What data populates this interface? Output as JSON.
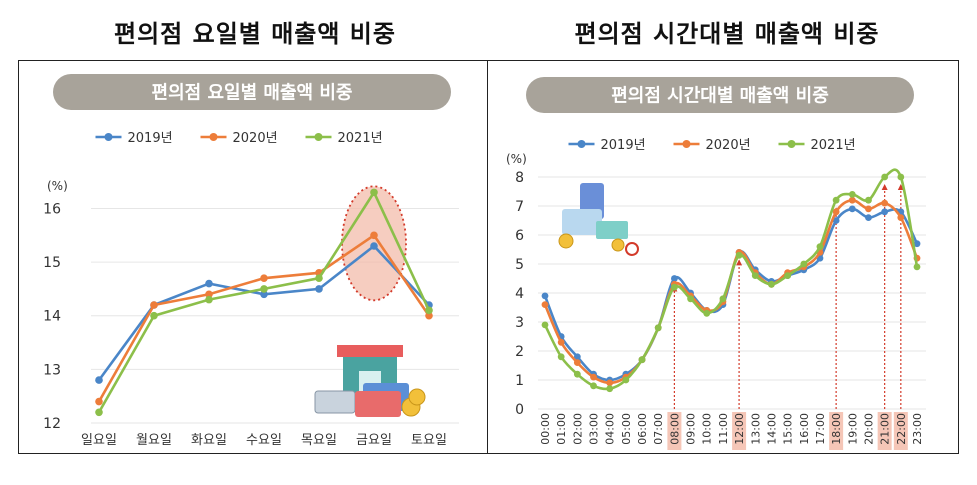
{
  "captions": {
    "left": "편의점 요일별 매출액 비중",
    "right": "편의점 시간대별 매출액 비중"
  },
  "colors": {
    "s2019": "#4a86c8",
    "s2020": "#ed7d3a",
    "s2021": "#8cbf4a",
    "pill": "#a8a39a",
    "highlight": "#f2b8a5",
    "highlight_border": "#d33a2a",
    "grid": "#e6e6e6"
  },
  "chart_data": [
    {
      "type": "line",
      "title": "편의점 요일별 매출액 비중",
      "ylabel": "(%)",
      "categories": [
        "일요일",
        "월요일",
        "화요일",
        "수요일",
        "목요일",
        "금요일",
        "토요일"
      ],
      "yticks": [
        12,
        13,
        14,
        15,
        16
      ],
      "ylim": [
        12,
        16.4
      ],
      "grid": true,
      "legend": "top-center",
      "series": [
        {
          "name": "2019년",
          "values": [
            12.8,
            14.2,
            14.6,
            14.4,
            14.5,
            15.3,
            14.2
          ]
        },
        {
          "name": "2020년",
          "values": [
            12.4,
            14.2,
            14.4,
            14.7,
            14.8,
            15.5,
            14.0
          ]
        },
        {
          "name": "2021년",
          "values": [
            12.2,
            14.0,
            14.3,
            14.5,
            14.7,
            16.3,
            14.1
          ]
        }
      ],
      "highlight_category": "금요일"
    },
    {
      "type": "line",
      "title": "편의점 시간대별 매출액 비중",
      "ylabel": "(%)",
      "categories": [
        "00:00",
        "01:00",
        "02:00",
        "03:00",
        "04:00",
        "05:00",
        "06:00",
        "07:00",
        "08:00",
        "09:00",
        "10:00",
        "11:00",
        "12:00",
        "13:00",
        "14:00",
        "15:00",
        "16:00",
        "17:00",
        "18:00",
        "19:00",
        "20:00",
        "21:00",
        "22:00",
        "23:00"
      ],
      "yticks": [
        0,
        1,
        2,
        3,
        4,
        5,
        6,
        7,
        8
      ],
      "ylim": [
        0,
        8
      ],
      "grid": true,
      "legend": "top-center",
      "series": [
        {
          "name": "2019년",
          "values": [
            3.9,
            2.5,
            1.8,
            1.2,
            1.0,
            1.2,
            1.7,
            2.8,
            4.5,
            4.0,
            3.4,
            3.6,
            5.4,
            4.8,
            4.4,
            4.6,
            4.8,
            5.2,
            6.5,
            6.9,
            6.6,
            6.8,
            6.8,
            5.7
          ]
        },
        {
          "name": "2020년",
          "values": [
            3.6,
            2.3,
            1.6,
            1.1,
            0.9,
            1.1,
            1.7,
            2.8,
            4.3,
            3.9,
            3.4,
            3.7,
            5.4,
            4.7,
            4.3,
            4.7,
            4.9,
            5.4,
            6.8,
            7.2,
            6.9,
            7.1,
            6.6,
            5.2
          ]
        },
        {
          "name": "2021년",
          "values": [
            2.9,
            1.8,
            1.2,
            0.8,
            0.7,
            1.0,
            1.7,
            2.8,
            4.2,
            3.8,
            3.3,
            3.8,
            5.3,
            4.6,
            4.3,
            4.6,
            5.0,
            5.6,
            7.2,
            7.4,
            7.2,
            8.0,
            8.0,
            4.9
          ]
        }
      ],
      "highlight_categories": [
        "08:00",
        "12:00",
        "18:00",
        "21:00",
        "22:00"
      ]
    }
  ]
}
